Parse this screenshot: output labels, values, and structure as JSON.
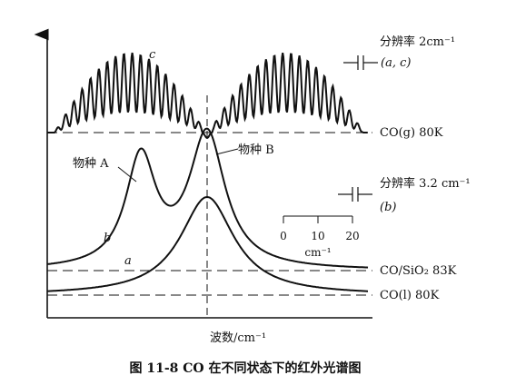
{
  "chart_data": {
    "type": "line",
    "xlabel": "波数/cm⁻¹",
    "caption": "图 11-8   CO 在不同状态下的红外光谱图",
    "resolution_top": "分辨率 2cm⁻¹",
    "resolution_top_curves": "(a, c)",
    "resolution_mid": "分辨率 3.2 cm⁻¹",
    "resolution_mid_curves": "(b)",
    "scale_ticks": [
      "0",
      "10",
      "20"
    ],
    "scale_unit": "cm⁻¹",
    "species_a": "物种 A",
    "species_b": "物种 B",
    "series": [
      {
        "name": "c",
        "condition": "CO(g)   80K"
      },
      {
        "name": "b",
        "condition": "CO/SiO₂   83K"
      },
      {
        "name": "a",
        "condition": "CO(l) 80K"
      }
    ]
  }
}
